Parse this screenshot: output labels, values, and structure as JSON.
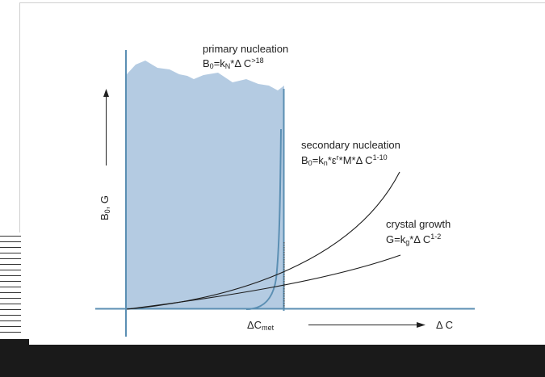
{
  "axes": {
    "y_label_main": "B",
    "y_label_sub": "0",
    "y_label_rest": ", G",
    "x_label": "Δ C",
    "x_marker_main": "ΔC",
    "x_marker_sub": "met"
  },
  "curves": {
    "primary": {
      "title": "primary nucleation",
      "eq_b": "B",
      "eq_b_sub": "0",
      "eq_mid": "=k",
      "eq_k_sub": "N",
      "eq_tail": "*Δ C",
      "eq_exp": ">18"
    },
    "secondary": {
      "title": "secondary nucleation",
      "eq_b": "B",
      "eq_b_sub": "0",
      "eq_mid": "=k",
      "eq_k_sub": "n",
      "eq_tail1": "*ε",
      "eq_r": "r",
      "eq_tail2": "*M*Δ C",
      "eq_exp": "1-10"
    },
    "growth": {
      "title": "crystal growth",
      "eq_g": "G=k",
      "eq_k_sub": "g",
      "eq_tail": "*Δ C",
      "eq_exp": "1-2"
    }
  },
  "colors": {
    "axis": "#5b8fb3",
    "fill": "#b4cbe2",
    "curve": "#1c1c1c",
    "frame": "#1a1a1a"
  }
}
